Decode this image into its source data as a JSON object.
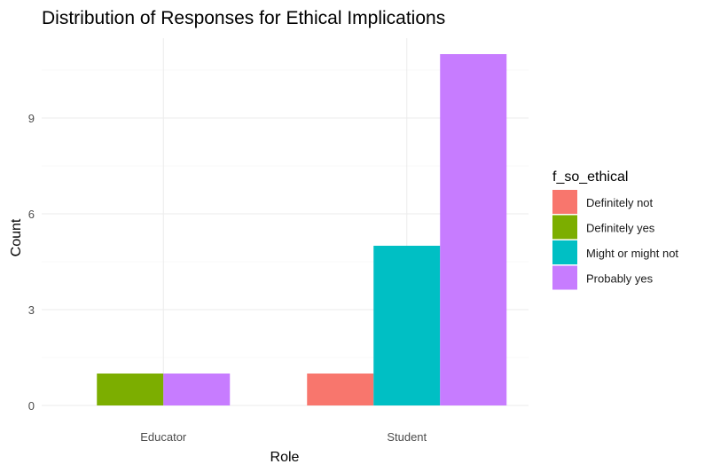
{
  "chart_data": {
    "type": "bar",
    "title": "Distribution of Responses for Ethical Implications",
    "xlabel": "Role",
    "ylabel": "Count",
    "categories": [
      "Educator",
      "Student"
    ],
    "yticks": [
      0,
      3,
      6,
      9
    ],
    "ylim": [
      0,
      11.5
    ],
    "grid": true,
    "legend": {
      "title": "f_so_ethical",
      "placement": "right"
    },
    "series": [
      {
        "name": "Definitely not",
        "color": "#F8766D",
        "values": [
          0,
          1
        ]
      },
      {
        "name": "Definitely yes",
        "color": "#7CAE00",
        "values": [
          1,
          0
        ]
      },
      {
        "name": "Might or might not",
        "color": "#00BFC4",
        "values": [
          0,
          5
        ]
      },
      {
        "name": "Probably yes",
        "color": "#C77CFF",
        "values": [
          1,
          11
        ]
      }
    ]
  }
}
